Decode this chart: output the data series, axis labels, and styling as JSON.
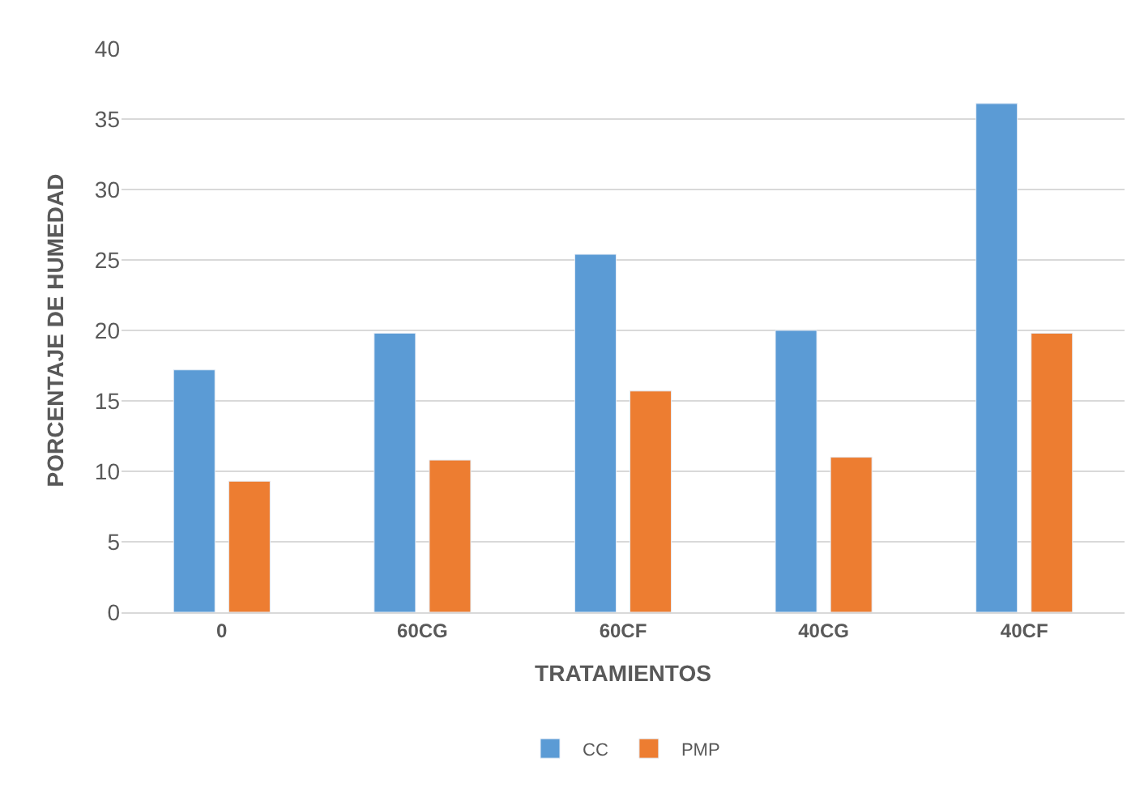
{
  "chart_data": {
    "type": "bar",
    "categories": [
      "0",
      "60CG",
      "60CF",
      "40CG",
      "40CF"
    ],
    "series": [
      {
        "name": "CC",
        "color": "#5b9bd5",
        "values": [
          17.2,
          19.8,
          25.4,
          20.0,
          36.1
        ]
      },
      {
        "name": "PMP",
        "color": "#ed7d31",
        "values": [
          9.3,
          10.8,
          15.7,
          11.0,
          19.8
        ]
      }
    ],
    "xlabel": "TRATAMIENTOS",
    "ylabel": "PORCENTAJE DE HUMEDAD",
    "ylim": [
      0,
      40
    ],
    "yticks": [
      0,
      5,
      10,
      15,
      20,
      25,
      30,
      35,
      40
    ],
    "grid": "y",
    "legend": "bottom"
  }
}
